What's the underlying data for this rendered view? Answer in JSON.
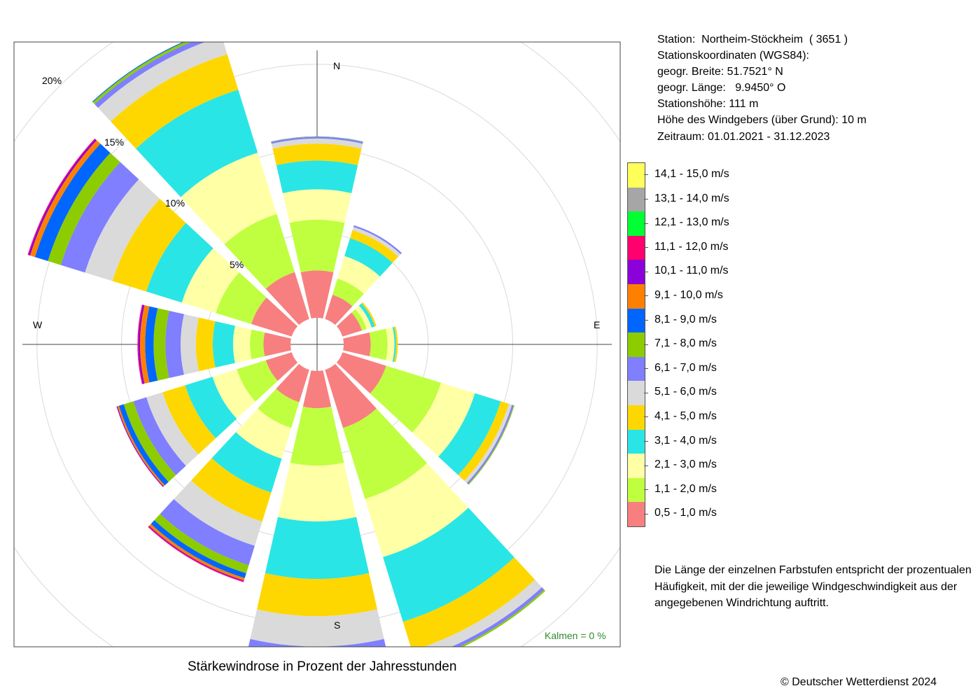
{
  "station": {
    "line1": "Station:  Northeim-Stöckheim  ( 3651 )",
    "line2": "Stationskoordinaten (WGS84):",
    "line3": "geogr. Breite: 51.7521° N",
    "line4": "geogr. Länge:   9.9450° O",
    "line5": "Stationshöhe: 111 m",
    "line6": "Höhe des Windgebers (über Grund): 10 m",
    "line7": "Zeitraum: 01.01.2021 - 31.12.2023"
  },
  "note": {
    "line1": "Die Länge der einzelnen Farbstufen entspricht der prozentualen",
    "line2": "Häufigkeit, mit der die jeweilige Windgeschwindigkeit aus der",
    "line3": "angegebenen Windrichtung auftritt."
  },
  "caption": "Stärkewindrose in Prozent der Jahresstunden",
  "copyright": "© Deutscher Wetterdienst  2024",
  "calm_label": "Kalmen  =  0 %",
  "compass": {
    "n": "N",
    "e": "E",
    "s": "S",
    "w": "W"
  },
  "chart_data": {
    "type": "wind_rose",
    "title": "Stärkewindrose in Prozent der Jahresstunden",
    "unit": "%",
    "radial_ticks": [
      5,
      10,
      15,
      20
    ],
    "radial_tick_labels": [
      "5%",
      "10%",
      "15%",
      "20%"
    ],
    "rmax": 20,
    "calms_percent": 0,
    "directions_deg": [
      0,
      30,
      60,
      90,
      120,
      150,
      180,
      210,
      240,
      270,
      300,
      330
    ],
    "speed_classes": [
      {
        "label": "0,5 - 1,0 m/s",
        "color": "#F87F7F"
      },
      {
        "label": "1,1 - 2,0 m/s",
        "color": "#BFFF3F"
      },
      {
        "label": "2,1 - 3,0 m/s",
        "color": "#FFFFA6"
      },
      {
        "label": "3,1 - 4,0 m/s",
        "color": "#2AE5E5"
      },
      {
        "label": "4,1 - 5,0 m/s",
        "color": "#FFD700"
      },
      {
        "label": "5,1 - 6,0 m/s",
        "color": "#DADADA"
      },
      {
        "label": "6,1 - 7,0 m/s",
        "color": "#7F7FFF"
      },
      {
        "label": "7,1 - 8,0 m/s",
        "color": "#8CCC00"
      },
      {
        "label": "8,1 - 9,0 m/s",
        "color": "#0066FF"
      },
      {
        "label": "9,1 - 10,0 m/s",
        "color": "#FF8000"
      },
      {
        "label": "10,1 - 11,0 m/s",
        "color": "#8C00D9"
      },
      {
        "label": "11,1 - 12,0 m/s",
        "color": "#FF006E"
      },
      {
        "label": "12,1 - 13,0 m/s",
        "color": "#00FF33"
      },
      {
        "label": "13,1 - 14,0 m/s",
        "color": "#A6A6A6"
      },
      {
        "label": "14,1 - 15,0 m/s",
        "color": "#FFFF59"
      }
    ],
    "cumulative_percent": [
      [
        2.8,
        5.8,
        7.6,
        9.3,
        10.3,
        10.6,
        10.7,
        10.72,
        10.73
      ],
      [
        1.5,
        2.5,
        3.9,
        5.0,
        5.5,
        5.7,
        5.8
      ],
      [
        1.2,
        1.5,
        1.8,
        2.0,
        2.1
      ],
      [
        1.6,
        2.6,
        3.0,
        3.1,
        3.2
      ],
      [
        2.7,
        6.1,
        8.2,
        9.8,
        10.3,
        10.5,
        10.6,
        10.65
      ],
      [
        3.6,
        8.0,
        11.6,
        15.6,
        17.4,
        18.0,
        18.2,
        18.3
      ],
      [
        2.2,
        5.6,
        8.9,
        12.3,
        14.5,
        16.3,
        17.5,
        17.9,
        18.1,
        18.2,
        18.25
      ],
      [
        2.0,
        3.6,
        5.5,
        7.6,
        9.4,
        10.9,
        12.1,
        12.6,
        12.9,
        13.05,
        13.1,
        13.15
      ],
      [
        1.6,
        3.4,
        4.9,
        6.6,
        8.0,
        9.0,
        9.8,
        10.4,
        10.7,
        10.8,
        10.85
      ],
      [
        1.6,
        2.4,
        3.4,
        4.6,
        5.6,
        6.5,
        7.4,
        8.1,
        8.6,
        8.9,
        9.0,
        9.05
      ],
      [
        2.5,
        4.7,
        6.8,
        9.0,
        11.1,
        12.8,
        14.3,
        15.1,
        15.9,
        16.2,
        16.3,
        16.35
      ],
      [
        2.9,
        6.5,
        10.3,
        14.2,
        16.4,
        17.5,
        17.8,
        17.95,
        18.0
      ]
    ]
  }
}
